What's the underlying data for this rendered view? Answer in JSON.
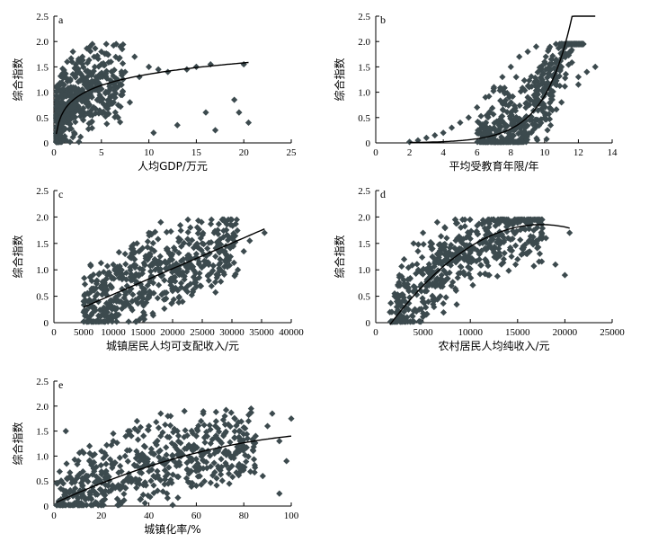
{
  "chart_data": [
    {
      "id": "a",
      "type": "scatter",
      "panel_label": "a",
      "xlabel": "人均GDP/万元",
      "ylabel": "综合指数",
      "xlim": [
        0,
        25
      ],
      "ylim": [
        0,
        2.5
      ],
      "xticks": [
        "0",
        "5",
        "10",
        "15",
        "20",
        "25"
      ],
      "yticks": [
        "0",
        "0.5",
        "1.0",
        "1.5",
        "2.0",
        "2.5"
      ],
      "fit": {
        "kind": "log",
        "a": 0.62,
        "b": 0.32,
        "x0": 0.25,
        "x1": 20.5
      },
      "points": [
        [
          0.3,
          0.1
        ],
        [
          0.6,
          0.4
        ],
        [
          0.8,
          0.7
        ],
        [
          1,
          0.9
        ],
        [
          1.2,
          1.3
        ],
        [
          1.4,
          1.6
        ],
        [
          1.6,
          0.5
        ],
        [
          1.8,
          1.1
        ],
        [
          2,
          1.8
        ],
        [
          2.2,
          0.8
        ],
        [
          2.5,
          1.4
        ],
        [
          2.8,
          1.0
        ],
        [
          3,
          1.7
        ],
        [
          3.2,
          0.6
        ],
        [
          3.5,
          1.2
        ],
        [
          3.8,
          1.9
        ],
        [
          4,
          0.9
        ],
        [
          4.3,
          1.5
        ],
        [
          4.6,
          1.1
        ],
        [
          5,
          1.8
        ],
        [
          5.5,
          0.7
        ],
        [
          6,
          1.6
        ],
        [
          6.5,
          1.2
        ],
        [
          7,
          1.9
        ],
        [
          7.5,
          1.4
        ],
        [
          8,
          0.8
        ],
        [
          8.5,
          1.7
        ],
        [
          9,
          1.3
        ],
        [
          10,
          1.5
        ],
        [
          10.5,
          0.2
        ],
        [
          11,
          1.45
        ],
        [
          12,
          1.4
        ],
        [
          13,
          0.35
        ],
        [
          14,
          1.45
        ],
        [
          15,
          1.5
        ],
        [
          16,
          0.6
        ],
        [
          16.5,
          1.55
        ],
        [
          17,
          0.25
        ],
        [
          19,
          0.85
        ],
        [
          19.5,
          0.6
        ],
        [
          20.5,
          0.4
        ],
        [
          20,
          1.55
        ]
      ]
    },
    {
      "id": "b",
      "type": "scatter",
      "panel_label": "b",
      "xlabel": "平均受教育年限/年",
      "ylabel": "综合指数",
      "xlim": [
        0,
        14
      ],
      "ylim": [
        0,
        2.5
      ],
      "xticks": [
        "0",
        "2",
        "4",
        "6",
        "8",
        "10",
        "12",
        "14"
      ],
      "yticks": [
        "0",
        "0.5",
        "1.0",
        "1.5",
        "2.0",
        "2.5"
      ],
      "fit": {
        "kind": "exp",
        "a": 0.0022,
        "b": 0.605,
        "x0": 2.0,
        "x1": 13.0
      },
      "points": [
        [
          2,
          0.02
        ],
        [
          2.5,
          0.05
        ],
        [
          3,
          0.1
        ],
        [
          3.5,
          0.15
        ],
        [
          4,
          0.2
        ],
        [
          4.5,
          0.3
        ],
        [
          5,
          0.4
        ],
        [
          5.5,
          0.5
        ],
        [
          6,
          0.7
        ],
        [
          6.5,
          0.9
        ],
        [
          7,
          1.1
        ],
        [
          7.5,
          1.3
        ],
        [
          8,
          1.5
        ],
        [
          8.5,
          1.7
        ],
        [
          9,
          1.8
        ],
        [
          9.5,
          1.9
        ],
        [
          10,
          1.6
        ],
        [
          10.5,
          1.2
        ],
        [
          11,
          1.5
        ],
        [
          11.5,
          1.8
        ],
        [
          12,
          1.3
        ],
        [
          12.5,
          1.4
        ],
        [
          13,
          1.5
        ],
        [
          7,
          0.3
        ],
        [
          8,
          0.6
        ],
        [
          9,
          0.9
        ],
        [
          10,
          1.0
        ],
        [
          11,
          0.8
        ],
        [
          12,
          1.15
        ]
      ]
    },
    {
      "id": "c",
      "type": "scatter",
      "panel_label": "c",
      "xlabel": "城镇居民人均可支配收入/元",
      "ylabel": "综合指数",
      "xlim": [
        0,
        40000
      ],
      "ylim": [
        0,
        2.5
      ],
      "xticks": [
        "0",
        "5000",
        "10000",
        "15000",
        "20000",
        "25000",
        "30000",
        "35000",
        "40000"
      ],
      "yticks": [
        "0",
        "0.5",
        "1.0",
        "1.5",
        "2.0",
        "2.5"
      ],
      "fit": {
        "kind": "linear",
        "a": 0.05,
        "b": 4.857e-05,
        "x0": 5000,
        "x1": 35500
      },
      "points": [
        [
          5000,
          0.2
        ],
        [
          6000,
          0.3
        ],
        [
          7000,
          0.5
        ],
        [
          8000,
          0.7
        ],
        [
          9000,
          0.9
        ],
        [
          10000,
          1.1
        ],
        [
          11000,
          0.4
        ],
        [
          12000,
          1.3
        ],
        [
          13000,
          0.8
        ],
        [
          14000,
          1.5
        ],
        [
          15000,
          1.0
        ],
        [
          16000,
          1.7
        ],
        [
          17000,
          1.2
        ],
        [
          18000,
          1.9
        ],
        [
          19000,
          1.4
        ],
        [
          20000,
          0.6
        ],
        [
          21000,
          1.6
        ],
        [
          22000,
          1.1
        ],
        [
          23000,
          1.8
        ],
        [
          24000,
          1.3
        ],
        [
          25000,
          1.5
        ],
        [
          26000,
          0.9
        ],
        [
          27000,
          1.7
        ],
        [
          28000,
          1.2
        ],
        [
          29000,
          1.45
        ],
        [
          30000,
          1.6
        ],
        [
          31000,
          1.0
        ],
        [
          32000,
          1.35
        ],
        [
          33000,
          1.55
        ],
        [
          35500,
          1.7
        ]
      ]
    },
    {
      "id": "d",
      "type": "scatter",
      "panel_label": "d",
      "xlabel": "农村居民人均纯收入/元",
      "ylabel": "综合指数",
      "xlim": [
        0,
        25000
      ],
      "ylim": [
        0,
        2.5
      ],
      "xticks": [
        "0",
        "5000",
        "10000",
        "15000",
        "20000",
        "25000"
      ],
      "yticks": [
        "0",
        "0.5",
        "1.0",
        "1.5",
        "2.0",
        "2.5"
      ],
      "fit": {
        "kind": "quad",
        "a": -0.41,
        "b": 0.000259,
        "c": -7.4e-09,
        "x0": 1500,
        "x1": 20500
      },
      "points": [
        [
          1500,
          0.2
        ],
        [
          2000,
          0.5
        ],
        [
          2500,
          0.9
        ],
        [
          3000,
          1.2
        ],
        [
          3500,
          0.6
        ],
        [
          4000,
          1.5
        ],
        [
          4500,
          1.0
        ],
        [
          5000,
          1.7
        ],
        [
          5500,
          0.8
        ],
        [
          6000,
          1.4
        ],
        [
          6500,
          1.9
        ],
        [
          7000,
          1.1
        ],
        [
          7500,
          1.6
        ],
        [
          8000,
          0.7
        ],
        [
          8500,
          1.3
        ],
        [
          9000,
          1.8
        ],
        [
          10000,
          1.2
        ],
        [
          11000,
          1.5
        ],
        [
          12000,
          0.9
        ],
        [
          13000,
          1.4
        ],
        [
          14000,
          1.6
        ],
        [
          15000,
          1.2
        ],
        [
          16000,
          1.3
        ],
        [
          17000,
          1.5
        ],
        [
          18000,
          1.6
        ],
        [
          19000,
          1.1
        ],
        [
          20000,
          0.9
        ],
        [
          20500,
          1.7
        ]
      ]
    },
    {
      "id": "e",
      "type": "scatter",
      "panel_label": "e",
      "xlabel": "城镇化率/%",
      "ylabel": "综合指数",
      "xlim": [
        0,
        100
      ],
      "ylim": [
        0,
        2.5
      ],
      "xticks": [
        "0",
        "20",
        "40",
        "60",
        "80",
        "100"
      ],
      "yticks": [
        "0",
        "0.5",
        "1.0",
        "1.5",
        "2.0",
        "2.5"
      ],
      "fit": {
        "kind": "quad",
        "a": 0.05,
        "b": 0.022,
        "c": -8.5e-05,
        "x0": 1,
        "x1": 100
      },
      "points": [
        [
          2,
          0.1
        ],
        [
          5,
          0.3
        ],
        [
          8,
          0.2
        ],
        [
          10,
          0.6
        ],
        [
          12,
          0.4
        ],
        [
          15,
          0.9
        ],
        [
          18,
          0.5
        ],
        [
          20,
          1.1
        ],
        [
          22,
          0.7
        ],
        [
          25,
          1.3
        ],
        [
          28,
          0.4
        ],
        [
          30,
          1.0
        ],
        [
          32,
          1.5
        ],
        [
          35,
          0.8
        ],
        [
          38,
          1.2
        ],
        [
          40,
          1.6
        ],
        [
          42,
          0.6
        ],
        [
          45,
          1.4
        ],
        [
          48,
          1.8
        ],
        [
          50,
          1.0
        ],
        [
          52,
          1.5
        ],
        [
          55,
          1.9
        ],
        [
          58,
          0.9
        ],
        [
          60,
          1.4
        ],
        [
          62,
          1.7
        ],
        [
          65,
          1.1
        ],
        [
          68,
          1.6
        ],
        [
          70,
          1.3
        ],
        [
          72,
          1.8
        ],
        [
          75,
          0.8
        ],
        [
          78,
          1.5
        ],
        [
          80,
          1.2
        ],
        [
          82,
          1.7
        ],
        [
          85,
          1.4
        ],
        [
          88,
          0.6
        ],
        [
          90,
          1.6
        ],
        [
          92,
          1.85
        ],
        [
          95,
          1.3
        ],
        [
          98,
          0.9
        ],
        [
          100,
          1.75
        ],
        [
          5,
          1.5
        ],
        [
          15,
          1.2
        ],
        [
          25,
          1.45
        ],
        [
          35,
          1.7
        ],
        [
          45,
          1.85
        ],
        [
          95,
          0.25
        ]
      ]
    }
  ]
}
